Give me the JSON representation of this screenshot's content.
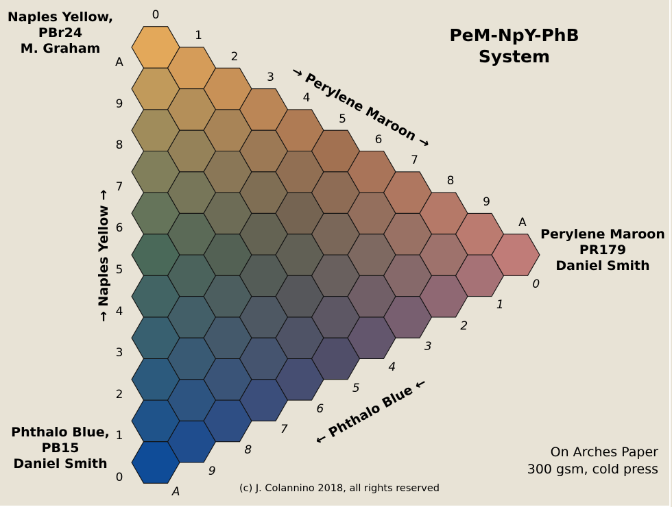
{
  "title": {
    "line1": "PeM-NpY-PhB",
    "line2": "System"
  },
  "corners": {
    "top": {
      "line1": "Naples Yellow,",
      "line2": "PBr24",
      "line3": "M. Graham"
    },
    "right": {
      "line1": "Perylene Maroon",
      "line2": "PR179",
      "line3": "Daniel Smith"
    },
    "bottom": {
      "line1": "Phthalo Blue,",
      "line2": "PB15",
      "line3": "Daniel Smith"
    }
  },
  "axes": {
    "maroon": {
      "label": "Perylene Maroon",
      "arrow_start": "→",
      "arrow_end": "→"
    },
    "yellow": {
      "label": "Naples Yellow",
      "arrow_start": "→",
      "arrow_end": "→"
    },
    "blue": {
      "label": "Phthalo Blue",
      "arrow_start": "←",
      "arrow_end": "←"
    }
  },
  "ticks": {
    "top_edge": [
      "0",
      "1",
      "2",
      "3",
      "4",
      "5",
      "6",
      "7",
      "8",
      "9",
      "A"
    ],
    "left_edge": [
      "A",
      "9",
      "8",
      "7",
      "6",
      "5",
      "4",
      "3",
      "2",
      "1",
      "0"
    ],
    "diag_edge": [
      "0",
      "1",
      "2",
      "3",
      "4",
      "5",
      "6",
      "7",
      "8",
      "9",
      "A"
    ]
  },
  "paper_note": {
    "line1": "On Arches Paper",
    "line2": "300 gsm, cold press"
  },
  "copyright": "(c) J. Colannino 2018, all rights reserved",
  "colors": {
    "background": "#e8e3d6",
    "naples_yellow": "#e3a85a",
    "perylene_maroon": "#c07c78",
    "phthalo_blue": "#0f4c98",
    "hex_stroke": "#111111"
  }
}
